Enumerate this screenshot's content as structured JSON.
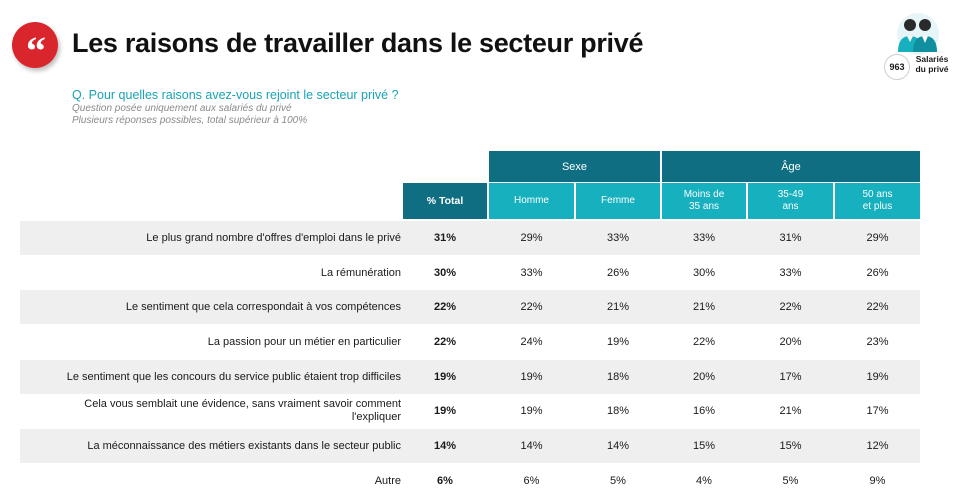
{
  "header": {
    "title": "Les raisons de travailler dans le secteur privé",
    "quote_glyph": "“"
  },
  "badge": {
    "count": "963",
    "label_line1": "Salariés",
    "label_line2": "du privé",
    "icon": "people-icon"
  },
  "question": {
    "text": "Q. Pour quelles raisons avez-vous rejoint le secteur privé ?",
    "note1": "Question posée uniquement aux salariés du privé",
    "note2": "Plusieurs réponses possibles, total supérieur à 100%"
  },
  "table": {
    "group_headers": {
      "sexe": "Sexe",
      "age": "Âge"
    },
    "columns": {
      "total": "% Total",
      "homme": "Homme",
      "femme": "Femme",
      "moins35_l1": "Moins de",
      "moins35_l2": "35 ans",
      "a3549_l1": "35-49",
      "a3549_l2": "ans",
      "a50_l1": "50 ans",
      "a50_l2": "et plus"
    },
    "rows": [
      {
        "label": "Le plus grand nombre d'offres d'emploi dans le privé",
        "total": "31%",
        "homme": "29%",
        "femme": "33%",
        "moins35": "33%",
        "a3549": "31%",
        "a50": "29%"
      },
      {
        "label": "La rémunération",
        "total": "30%",
        "homme": "33%",
        "femme": "26%",
        "moins35": "30%",
        "a3549": "33%",
        "a50": "26%"
      },
      {
        "label": "Le sentiment que cela correspondait à vos compétences",
        "total": "22%",
        "homme": "22%",
        "femme": "21%",
        "moins35": "21%",
        "a3549": "22%",
        "a50": "22%"
      },
      {
        "label": "La passion pour un métier en particulier",
        "total": "22%",
        "homme": "24%",
        "femme": "19%",
        "moins35": "22%",
        "a3549": "20%",
        "a50": "23%"
      },
      {
        "label": "Le sentiment que les concours du service public étaient trop difficiles",
        "total": "19%",
        "homme": "19%",
        "femme": "18%",
        "moins35": "20%",
        "a3549": "17%",
        "a50": "19%"
      },
      {
        "label": "Cela vous semblait une évidence, sans vraiment savoir comment l'expliquer",
        "total": "19%",
        "homme": "19%",
        "femme": "18%",
        "moins35": "16%",
        "a3549": "21%",
        "a50": "17%"
      },
      {
        "label": "La méconnaissance des métiers existants dans le secteur public",
        "total": "14%",
        "homme": "14%",
        "femme": "14%",
        "moins35": "15%",
        "a3549": "15%",
        "a50": "12%"
      },
      {
        "label": "Autre",
        "total": "6%",
        "homme": "6%",
        "femme": "5%",
        "moins35": "4%",
        "a3549": "5%",
        "a50": "9%"
      }
    ]
  },
  "colors": {
    "brand_red": "#d9262c",
    "header_dark": "#0f6e82",
    "header_light": "#17b0be",
    "question": "#1aa3b3",
    "row_shade": "#efefef"
  }
}
